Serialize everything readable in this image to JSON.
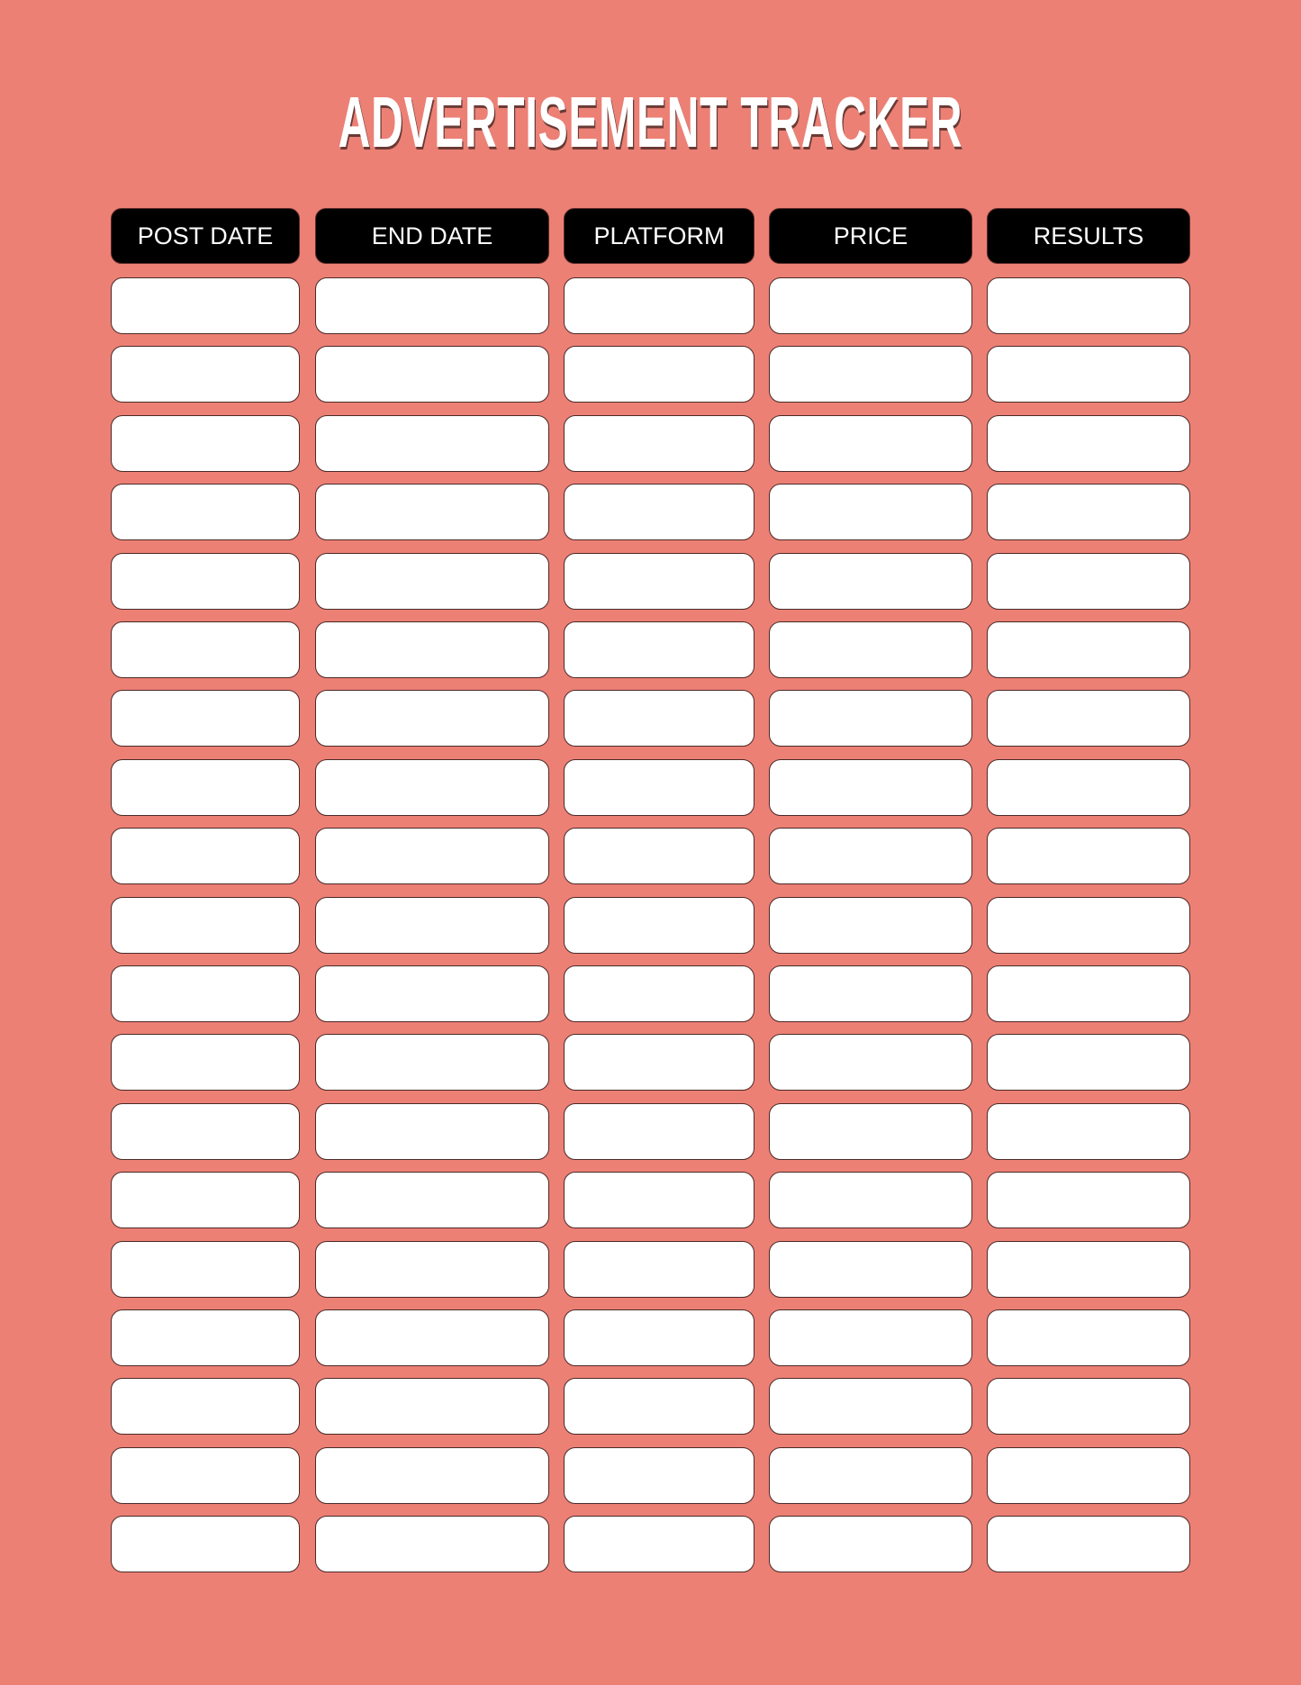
{
  "title": "ADVERTISEMENT TRACKER",
  "columns": [
    "POST DATE",
    "END DATE",
    "PLATFORM",
    "PRICE",
    "RESULTS"
  ],
  "row_count": 19,
  "colors": {
    "background": "#ec8075",
    "header": "#000000",
    "cell": "#ffffff"
  }
}
